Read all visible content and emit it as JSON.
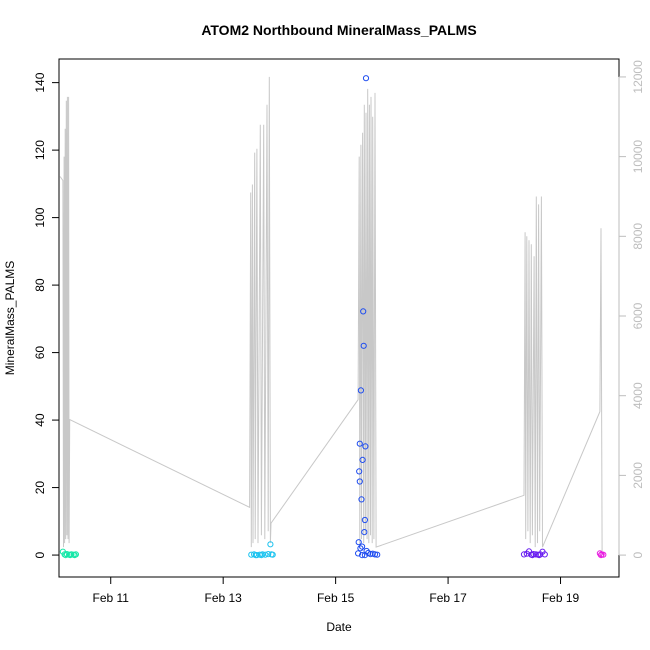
{
  "chart_data": {
    "type": "scatter",
    "title": "ATOM2 Northbound MineralMass_PALMS",
    "xlabel": "Date",
    "ylabel": "MineralMass_PALMS",
    "x_ticks": [
      "Feb 11",
      "Feb 13",
      "Feb 15",
      "Feb 17",
      "Feb 19"
    ],
    "x_tick_values": [
      11,
      13,
      15,
      17,
      19
    ],
    "xlim": [
      10.08,
      20.04
    ],
    "ylim": [
      -6.5,
      147
    ],
    "y_ticks": [
      0,
      20,
      40,
      60,
      80,
      100,
      120,
      140
    ],
    "y2_ticks": [
      0,
      2000,
      4000,
      6000,
      8000,
      10000,
      12000
    ],
    "y2lim": [
      -550,
      12450
    ],
    "grid": false,
    "colors": {
      "altitude_line": "#c8c8c8",
      "seg1": "#16e8a8",
      "seg2": "#1ec4f0",
      "seg3": "#1f4df0",
      "seg4": "#6a1ff0",
      "seg5": "#e81fe0"
    },
    "series": [
      {
        "color_key": "seg1",
        "points": [
          {
            "x": 10.15,
            "y": 1.0
          },
          {
            "x": 10.18,
            "y": 0.2
          },
          {
            "x": 10.22,
            "y": 0.3
          },
          {
            "x": 10.26,
            "y": 0.1
          },
          {
            "x": 10.3,
            "y": 0.2
          },
          {
            "x": 10.34,
            "y": 0.1
          },
          {
            "x": 10.38,
            "y": 0.2
          },
          {
            "x": 10.2,
            "y": 0.0
          },
          {
            "x": 10.28,
            "y": 0.0
          },
          {
            "x": 10.36,
            "y": 0.0
          }
        ]
      },
      {
        "color_key": "seg2",
        "points": [
          {
            "x": 13.5,
            "y": 0.1
          },
          {
            "x": 13.55,
            "y": 0.2
          },
          {
            "x": 13.6,
            "y": 0.0
          },
          {
            "x": 13.65,
            "y": 0.1
          },
          {
            "x": 13.7,
            "y": 0.2
          },
          {
            "x": 13.75,
            "y": 0.1
          },
          {
            "x": 13.8,
            "y": 0.3
          },
          {
            "x": 13.84,
            "y": 3.2
          },
          {
            "x": 13.86,
            "y": 0.2
          },
          {
            "x": 13.88,
            "y": 0.1
          },
          {
            "x": 13.58,
            "y": 0.0
          },
          {
            "x": 13.68,
            "y": 0.0
          }
        ]
      },
      {
        "color_key": "seg3",
        "points": [
          {
            "x": 15.4,
            "y": 0.5
          },
          {
            "x": 15.41,
            "y": 3.8
          },
          {
            "x": 15.42,
            "y": 24.8
          },
          {
            "x": 15.43,
            "y": 21.8
          },
          {
            "x": 15.43,
            "y": 33.0
          },
          {
            "x": 15.44,
            "y": 2.0
          },
          {
            "x": 15.45,
            "y": 48.8
          },
          {
            "x": 15.46,
            "y": 16.5
          },
          {
            "x": 15.47,
            "y": 2.5
          },
          {
            "x": 15.48,
            "y": 28.2
          },
          {
            "x": 15.49,
            "y": 72.2
          },
          {
            "x": 15.5,
            "y": 62.0
          },
          {
            "x": 15.51,
            "y": 6.8
          },
          {
            "x": 15.52,
            "y": 10.4
          },
          {
            "x": 15.53,
            "y": 32.2
          },
          {
            "x": 15.54,
            "y": 141.3
          },
          {
            "x": 15.55,
            "y": 1.2
          },
          {
            "x": 15.58,
            "y": 0.6
          },
          {
            "x": 15.62,
            "y": 0.3
          },
          {
            "x": 15.66,
            "y": 0.4
          },
          {
            "x": 15.7,
            "y": 0.2
          },
          {
            "x": 15.74,
            "y": 0.1
          },
          {
            "x": 15.47,
            "y": 0.0
          },
          {
            "x": 15.52,
            "y": 0.0
          }
        ]
      },
      {
        "color_key": "seg4",
        "points": [
          {
            "x": 18.35,
            "y": 0.2
          },
          {
            "x": 18.4,
            "y": 0.4
          },
          {
            "x": 18.44,
            "y": 1.1
          },
          {
            "x": 18.48,
            "y": 0.1
          },
          {
            "x": 18.52,
            "y": 0.3
          },
          {
            "x": 18.56,
            "y": 0.2
          },
          {
            "x": 18.6,
            "y": 0.1
          },
          {
            "x": 18.64,
            "y": 0.2
          },
          {
            "x": 18.68,
            "y": 1.0
          },
          {
            "x": 18.72,
            "y": 0.2
          },
          {
            "x": 18.5,
            "y": 0.0
          },
          {
            "x": 18.62,
            "y": 0.0
          }
        ]
      },
      {
        "color_key": "seg5",
        "points": [
          {
            "x": 19.7,
            "y": 0.5
          },
          {
            "x": 19.73,
            "y": 0.2
          },
          {
            "x": 19.76,
            "y": 0.1
          },
          {
            "x": 19.72,
            "y": 0.0
          }
        ]
      }
    ],
    "altitude_series": {
      "axis": "right",
      "x": [
        10.1,
        10.15,
        10.16,
        10.17,
        10.18,
        10.19,
        10.2,
        10.21,
        10.22,
        10.23,
        10.24,
        10.25,
        10.26,
        10.27,
        13.47,
        13.49,
        13.5,
        13.52,
        13.53,
        13.56,
        13.57,
        13.6,
        13.62,
        13.66,
        13.68,
        13.72,
        13.74,
        13.78,
        13.8,
        13.82,
        13.84,
        13.85,
        15.4,
        15.42,
        15.43,
        15.45,
        15.46,
        15.48,
        15.5,
        15.51,
        15.53,
        15.54,
        15.56,
        15.57,
        15.59,
        15.6,
        15.62,
        15.63,
        15.65,
        15.66,
        15.68,
        15.7,
        15.72,
        18.35,
        18.37,
        18.38,
        18.4,
        18.42,
        18.44,
        18.46,
        18.48,
        18.5,
        18.53,
        18.55,
        18.57,
        18.59,
        18.61,
        18.63,
        18.66,
        18.68,
        19.7,
        19.72,
        19.74
      ],
      "y": [
        9500,
        9400,
        200,
        10000,
        300,
        10700,
        400,
        11400,
        500,
        11500,
        400,
        11500,
        300,
        3400,
        1200,
        9100,
        200,
        9300,
        300,
        10100,
        400,
        10200,
        300,
        10800,
        500,
        10800,
        400,
        11300,
        600,
        12000,
        300,
        800,
        3900,
        10000,
        200,
        10300,
        400,
        10600,
        300,
        11300,
        500,
        11100,
        400,
        11700,
        300,
        11300,
        500,
        11500,
        300,
        11000,
        400,
        11600,
        200,
        1500,
        8100,
        400,
        8000,
        600,
        7900,
        300,
        7800,
        500,
        7500,
        200,
        9000,
        300,
        8800,
        600,
        9000,
        200,
        3600,
        8200,
        100
      ]
    }
  }
}
